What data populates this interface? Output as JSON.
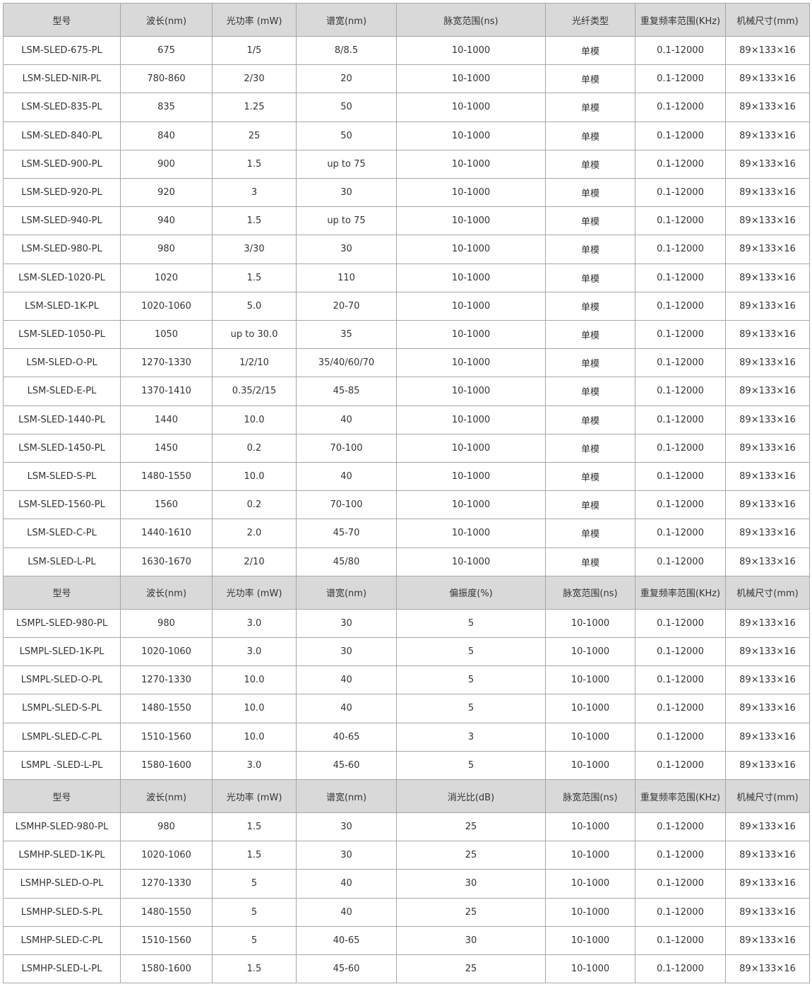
{
  "tables": [
    {
      "header": [
        "型号",
        "波长(nm)",
        "光功率 (mW)",
        "谱宽(nm)",
        "脉宽范围(ns)",
        "光纤类型",
        "重复频率范围(KHz)",
        "机械尺寸(mm)"
      ],
      "rows": [
        [
          "LSM-SLED-675-PL",
          "675",
          "1/5",
          "8/8.5",
          "10-1000",
          "单模",
          "0.1-12000",
          "89×133×16"
        ],
        [
          "LSM-SLED-NIR-PL",
          "780-860",
          "2/30",
          "20",
          "10-1000",
          "单模",
          "0.1-12000",
          "89×133×16"
        ],
        [
          "LSM-SLED-835-PL",
          "835",
          "1.25",
          "50",
          "10-1000",
          "单模",
          "0.1-12000",
          "89×133×16"
        ],
        [
          "LSM-SLED-840-PL",
          "840",
          "25",
          "50",
          "10-1000",
          "单模",
          "0.1-12000",
          "89×133×16"
        ],
        [
          "LSM-SLED-900-PL",
          "900",
          "1.5",
          "up to 75",
          "10-1000",
          "单模",
          "0.1-12000",
          "89×133×16"
        ],
        [
          "LSM-SLED-920-PL",
          "920",
          "3",
          "30",
          "10-1000",
          "单模",
          "0.1-12000",
          "89×133×16"
        ],
        [
          "LSM-SLED-940-PL",
          "940",
          "1.5",
          "up to 75",
          "10-1000",
          "单模",
          "0.1-12000",
          "89×133×16"
        ],
        [
          "LSM-SLED-980-PL",
          "980",
          "3/30",
          "30",
          "10-1000",
          "单模",
          "0.1-12000",
          "89×133×16"
        ],
        [
          "LSM-SLED-1020-PL",
          "1020",
          "1.5",
          "110",
          "10-1000",
          "单模",
          "0.1-12000",
          "89×133×16"
        ],
        [
          "LSM-SLED-1K-PL",
          "1020-1060",
          "5.0",
          "20-70",
          "10-1000",
          "单模",
          "0.1-12000",
          "89×133×16"
        ],
        [
          "LSM-SLED-1050-PL",
          "1050",
          "up to 30.0",
          "35",
          "10-1000",
          "单模",
          "0.1-12000",
          "89×133×16"
        ],
        [
          "LSM-SLED-O-PL",
          "1270-1330",
          "1/2/10",
          "35/40/60/70",
          "10-1000",
          "单模",
          "0.1-12000",
          "89×133×16"
        ],
        [
          "LSM-SLED-E-PL",
          "1370-1410",
          "0.35/2/15",
          "45-85",
          "10-1000",
          "单模",
          "0.1-12000",
          "89×133×16"
        ],
        [
          "LSM-SLED-1440-PL",
          "1440",
          "10.0",
          "40",
          "10-1000",
          "单模",
          "0.1-12000",
          "89×133×16"
        ],
        [
          "LSM-SLED-1450-PL",
          "1450",
          "0.2",
          "70-100",
          "10-1000",
          "单模",
          "0.1-12000",
          "89×133×16"
        ],
        [
          "LSM-SLED-S-PL",
          "1480-1550",
          "10.0",
          "40",
          "10-1000",
          "单模",
          "0.1-12000",
          "89×133×16"
        ],
        [
          "LSM-SLED-1560-PL",
          "1560",
          "0.2",
          "70-100",
          "10-1000",
          "单模",
          "0.1-12000",
          "89×133×16"
        ],
        [
          "LSM-SLED-C-PL",
          "1440-1610",
          "2.0",
          "45-70",
          "10-1000",
          "单模",
          "0.1-12000",
          "89×133×16"
        ],
        [
          "LSM-SLED-L-PL",
          "1630-1670",
          "2/10",
          "45/80",
          "10-1000",
          "单模",
          "0.1-12000",
          "89×133×16"
        ]
      ]
    },
    {
      "header": [
        "型号",
        "波长(nm)",
        "光功率 (mW)",
        "谱宽(nm)",
        "偏振度(%)",
        "脉宽范围(ns)",
        "重复频率范围(KHz)",
        "机械尺寸(mm)"
      ],
      "rows": [
        [
          "LSMPL-SLED-980-PL",
          "980",
          "3.0",
          "30",
          "5",
          "10-1000",
          "0.1-12000",
          "89×133×16"
        ],
        [
          "LSMPL-SLED-1K-PL",
          "1020-1060",
          "3.0",
          "30",
          "5",
          "10-1000",
          "0.1-12000",
          "89×133×16"
        ],
        [
          "LSMPL-SLED-O-PL",
          "1270-1330",
          "10.0",
          "40",
          "5",
          "10-1000",
          "0.1-12000",
          "89×133×16"
        ],
        [
          "LSMPL-SLED-S-PL",
          "1480-1550",
          "10.0",
          "40",
          "5",
          "10-1000",
          "0.1-12000",
          "89×133×16"
        ],
        [
          "LSMPL-SLED-C-PL",
          "1510-1560",
          "10.0",
          "40-65",
          "3",
          "10-1000",
          "0.1-12000",
          "89×133×16"
        ],
        [
          "LSMPL -SLED-L-PL",
          "1580-1600",
          "3.0",
          "45-60",
          "5",
          "10-1000",
          "0.1-12000",
          "89×133×16"
        ]
      ]
    },
    {
      "header": [
        "型号",
        "波长(nm)",
        "光功率 (mW)",
        "谱宽(nm)",
        "消光比(dB)",
        "脉宽范围(ns)",
        "重复频率范围(KHz)",
        "机械尺寸(mm)"
      ],
      "rows": [
        [
          "LSMHP-SLED-980-PL",
          "980",
          "1.5",
          "30",
          "25",
          "10-1000",
          "0.1-12000",
          "89×133×16"
        ],
        [
          "LSMHP-SLED-1K-PL",
          "1020-1060",
          "1.5",
          "30",
          "25",
          "10-1000",
          "0.1-12000",
          "89×133×16"
        ],
        [
          "LSMHP-SLED-O-PL",
          "1270-1330",
          "5",
          "40",
          "30",
          "10-1000",
          "0.1-12000",
          "89×133×16"
        ],
        [
          "LSMHP-SLED-S-PL",
          "1480-1550",
          "5",
          "40",
          "25",
          "10-1000",
          "0.1-12000",
          "89×133×16"
        ],
        [
          "LSMHP-SLED-C-PL",
          "1510-1560",
          "5",
          "40-65",
          "30",
          "10-1000",
          "0.1-12000",
          "89×133×16"
        ],
        [
          "LSMHP-SLED-L-PL",
          "1580-1600",
          "1.5",
          "45-60",
          "25",
          "10-1000",
          "0.1-12000",
          "89×133×16"
        ]
      ]
    }
  ]
}
